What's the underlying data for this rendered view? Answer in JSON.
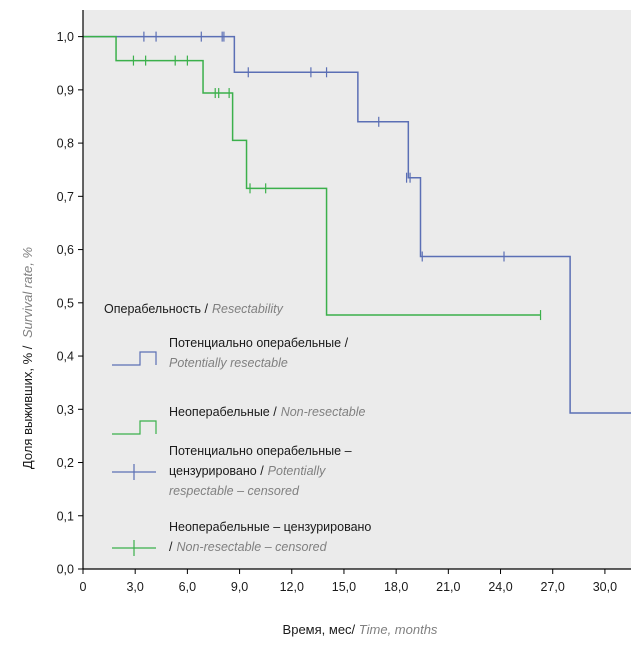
{
  "chart_data": {
    "type": "line",
    "subtype": "kaplan-meier-step",
    "xlabel": {
      "ru": "Время, мес/",
      "en": "Time, months"
    },
    "ylabel": {
      "ru": "Доля выживших, % /",
      "en": "Survival rate, %"
    },
    "xlim": [
      0,
      31.5
    ],
    "ylim": [
      0,
      1.05
    ],
    "xticks": [
      "0",
      "3,0",
      "6,0",
      "9,0",
      "12,0",
      "15,0",
      "18,0",
      "21,0",
      "24,0",
      "27,0",
      "30,0"
    ],
    "yticks": [
      "0,0",
      "0,1",
      "0,2",
      "0,3",
      "0,4",
      "0,5",
      "0,6",
      "0,7",
      "0,8",
      "0,9",
      "1,0"
    ],
    "plot_background": "#ebebeb",
    "grid": false,
    "legend": {
      "title": {
        "ru": "Операбельность /",
        "en": "Resectability"
      },
      "placement": "center-left",
      "items": [
        {
          "kind": "step",
          "color": "#5b6fb5",
          "ru": "Потенциально операбельные /",
          "en": "Potentially resectable"
        },
        {
          "kind": "step",
          "color": "#3bb04b",
          "ru": "Неоперабельные /",
          "en": "Non-resectable"
        },
        {
          "kind": "censor",
          "color": "#5b6fb5",
          "ru": "Потенциально операбельные – цензурировано /",
          "en": "Potentially respectable – censored"
        },
        {
          "kind": "censor",
          "color": "#3bb04b",
          "ru": "Неоперабельные – цензурировано /",
          "en": "Non-resectable – censored"
        }
      ]
    },
    "series": [
      {
        "color": "#5b6fb5",
        "steps": [
          [
            0,
            1.0
          ],
          [
            8.7,
            0.933
          ],
          [
            15.8,
            0.84
          ],
          [
            18.7,
            0.735
          ],
          [
            19.4,
            0.587
          ],
          [
            28.0,
            0.293
          ]
        ],
        "x_end": 31.5,
        "censored": [
          [
            3.5,
            1.0
          ],
          [
            4.2,
            1.0
          ],
          [
            6.8,
            1.0
          ],
          [
            8.0,
            1.0
          ],
          [
            8.1,
            1.0
          ],
          [
            9.5,
            0.933
          ],
          [
            13.1,
            0.933
          ],
          [
            14.0,
            0.933
          ],
          [
            17.0,
            0.84
          ],
          [
            18.6,
            0.735
          ],
          [
            18.8,
            0.735
          ],
          [
            19.5,
            0.587
          ],
          [
            24.2,
            0.587
          ]
        ]
      },
      {
        "color": "#3bb04b",
        "steps": [
          [
            0,
            1.0
          ],
          [
            1.9,
            0.955
          ],
          [
            6.9,
            0.894
          ],
          [
            8.6,
            0.805
          ],
          [
            9.4,
            0.715
          ],
          [
            14.0,
            0.477
          ]
        ],
        "x_end": 26.3,
        "censored": [
          [
            2.9,
            0.955
          ],
          [
            3.6,
            0.955
          ],
          [
            5.3,
            0.955
          ],
          [
            6.0,
            0.955
          ],
          [
            7.6,
            0.894
          ],
          [
            7.8,
            0.894
          ],
          [
            8.4,
            0.894
          ],
          [
            9.6,
            0.715
          ],
          [
            10.5,
            0.715
          ],
          [
            26.3,
            0.477
          ]
        ]
      }
    ]
  }
}
